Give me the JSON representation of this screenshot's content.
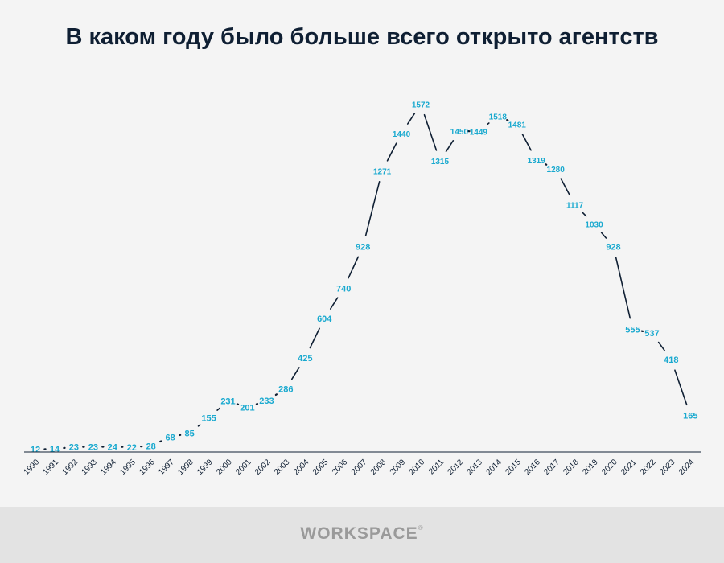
{
  "chart_data": {
    "type": "line",
    "title": "В каком году было больше всего открыто агентств",
    "x": [
      "1990",
      "1991",
      "1992",
      "1993",
      "1994",
      "1995",
      "1996",
      "1997",
      "1998",
      "1999",
      "2000",
      "2001",
      "2002",
      "2003",
      "2004",
      "2005",
      "2006",
      "2007",
      "2008",
      "2009",
      "2010",
      "2011",
      "2012",
      "2013",
      "2014",
      "2015",
      "2016",
      "2017",
      "2018",
      "2019",
      "2020",
      "2021",
      "2022",
      "2023",
      "2024"
    ],
    "values": [
      12,
      14,
      23,
      23,
      24,
      22,
      28,
      68,
      85,
      155,
      231,
      201,
      233,
      286,
      425,
      604,
      740,
      928,
      1271,
      1440,
      1572,
      1315,
      1450,
      1449,
      1518,
      1481,
      1319,
      1280,
      1117,
      1030,
      928,
      555,
      537,
      418,
      165
    ],
    "ylim": [
      0,
      1650
    ],
    "xlabel": "",
    "ylabel": "",
    "grid": false,
    "legend": "none",
    "colors": {
      "line": "#0f1f33",
      "label": "#19a9cf",
      "axis": "#0f1f33"
    }
  },
  "footer": {
    "brand": "WORKSPACE",
    "brand_mark": "®"
  }
}
